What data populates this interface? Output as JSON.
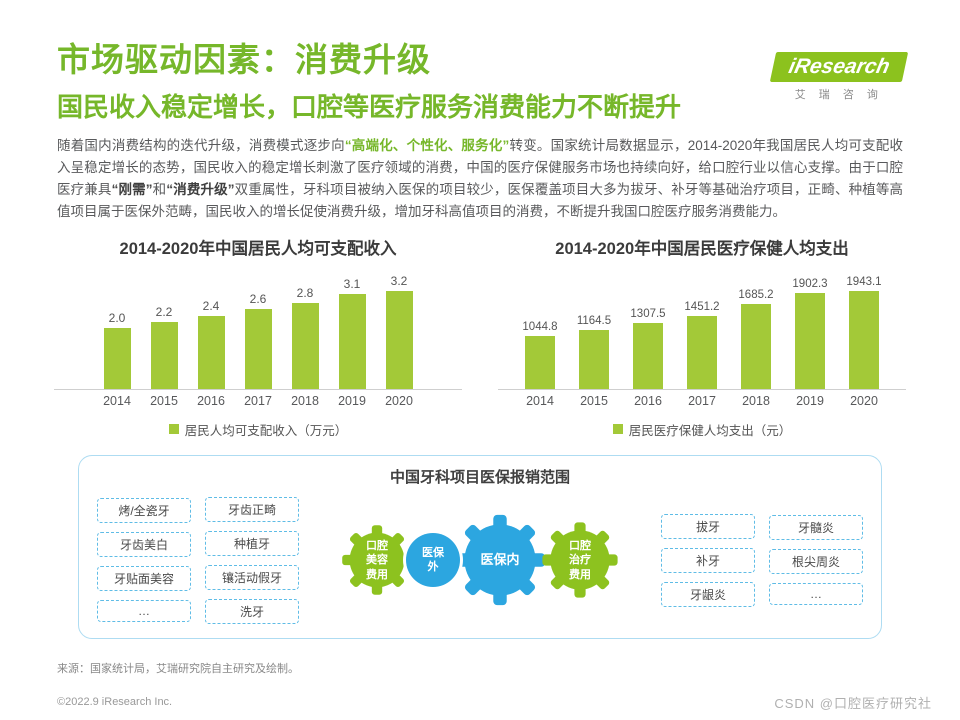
{
  "header": {
    "title": "市场驱动因素：消费升级",
    "subtitle": "国民收入稳定增长，口腔等医疗服务消费能力不断提升",
    "logo": {
      "brand": "iResearch",
      "brand_cn": "艾 瑞 咨 询"
    }
  },
  "body": {
    "paragraph_segments": [
      {
        "style": "normal",
        "text": "随着国内消费结构的迭代升级，消费模式逐步向"
      },
      {
        "style": "green",
        "text": "“高端化、个性化、服务化”"
      },
      {
        "style": "normal",
        "text": "转变。国家统计局数据显示，2014-2020年我国居民人均可支配收入呈稳定增长的态势，国民收入的稳定增长刺激了医疗领域的消费，中国的医疗保健服务市场也持续向好，给口腔行业以信心支撑。由于口腔医疗兼具"
      },
      {
        "style": "bold",
        "text": "“刚需”"
      },
      {
        "style": "normal",
        "text": "和"
      },
      {
        "style": "bold",
        "text": "“消费升级”"
      },
      {
        "style": "normal",
        "text": "双重属性，牙科项目被纳入医保的项目较少，医保覆盖项目大多为拔牙、补牙等基础治疗项目，正畸、种植等高值项目属于医保外范畴，国民收入的增长促使消费升级，增加牙科高值项目的消费，不断提升我国口腔医疗服务消费能力。"
      }
    ]
  },
  "chart_data": [
    {
      "type": "bar",
      "title": "2014-2020年中国居民人均可支配收入",
      "categories": [
        "2014",
        "2015",
        "2016",
        "2017",
        "2018",
        "2019",
        "2020"
      ],
      "values": [
        2.0,
        2.2,
        2.4,
        2.6,
        2.8,
        3.1,
        3.2
      ],
      "legend": "居民人均可支配收入（万元）",
      "xlabel": "",
      "ylabel": "",
      "ylim": [
        0,
        3.5
      ],
      "bar_color": "#A3C938",
      "grid": false,
      "legend_position": "bottom"
    },
    {
      "type": "bar",
      "title": "2014-2020年中国居民医疗保健人均支出",
      "categories": [
        "2014",
        "2015",
        "2016",
        "2017",
        "2018",
        "2019",
        "2020"
      ],
      "values": [
        1044.8,
        1164.5,
        1307.5,
        1451.2,
        1685.2,
        1902.3,
        1943.1
      ],
      "legend": "居民医疗保健人均支出（元）",
      "xlabel": "",
      "ylabel": "",
      "ylim": [
        0,
        2100
      ],
      "bar_color": "#A3C938",
      "grid": false,
      "legend_position": "bottom"
    }
  ],
  "insurance_panel": {
    "title": "中国牙科项目医保报销范围",
    "left_columns": [
      [
        "烤/全瓷牙",
        "牙齿美白",
        "牙贴面美容",
        "…"
      ],
      [
        "牙齿正畸",
        "种植牙",
        "镶活动假牙",
        "洗牙"
      ]
    ],
    "right_columns": [
      [
        "拔牙",
        "补牙",
        "牙龈炎"
      ],
      [
        "牙髓炎",
        "根尖周炎",
        "…"
      ]
    ],
    "nodes": [
      {
        "name": "beauty-cost-gear",
        "shape": "gear",
        "color": "#8DC21F",
        "lines": [
          "口腔",
          "美容",
          "费用"
        ]
      },
      {
        "name": "outside-insurance-circle",
        "shape": "circle",
        "color": "#2CA6E0",
        "lines": [
          "医保",
          "外"
        ]
      },
      {
        "name": "inside-insurance-gear",
        "shape": "gear",
        "color": "#2CA6E0",
        "lines": [
          "医保内"
        ]
      },
      {
        "name": "treatment-cost-gear",
        "shape": "gear",
        "color": "#8DC21F",
        "lines": [
          "口腔",
          "治疗",
          "费用"
        ]
      }
    ]
  },
  "footer": {
    "source": "来源：国家统计局，艾瑞研究院自主研究及绘制。",
    "copyright": "©2022.9 iResearch Inc.",
    "watermark": "CSDN @口腔医疗研究社"
  }
}
